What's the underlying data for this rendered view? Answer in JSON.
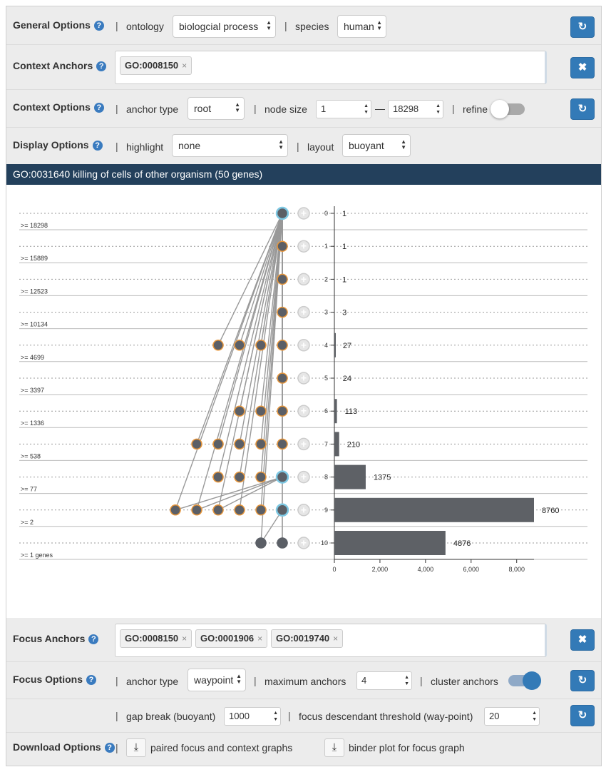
{
  "general": {
    "title": "General Options",
    "ontology_label": "ontology",
    "ontology_value": "biologcial process",
    "species_label": "species",
    "species_value": "human"
  },
  "context_anchors": {
    "title": "Context Anchors",
    "tags": [
      "GO:0008150"
    ]
  },
  "context_options": {
    "title": "Context Options",
    "anchor_type_label": "anchor type",
    "anchor_type_value": "root",
    "node_size_label": "node size",
    "node_size_min": "1",
    "node_size_dash": "—",
    "node_size_max": "18298",
    "refine_label": "refine",
    "refine_on": false
  },
  "display_options": {
    "title": "Display Options",
    "highlight_label": "highlight",
    "highlight_value": "none",
    "layout_label": "layout",
    "layout_value": "buoyant"
  },
  "banner": {
    "text": "GO:0031640 killing of cells of other organism (50 genes)"
  },
  "graph": {
    "row_thresholds": [
      ">= 18298",
      ">= 15889",
      ">= 12523",
      ">= 10134",
      ">= 4699",
      ">= 3397",
      ">= 1336",
      ">= 538",
      ">= 77",
      ">= 2",
      ">= 1 genes"
    ],
    "level_labels": [
      "0",
      "1",
      "2",
      "3",
      "4",
      "5",
      "6",
      "7",
      "8",
      "9",
      "10"
    ],
    "nodes_per_level": [
      1,
      1,
      1,
      1,
      4,
      1,
      3,
      5,
      4,
      6,
      2
    ],
    "highlighted_nodes": [
      "level-0",
      "level-8",
      "level-9"
    ],
    "colors": {
      "node_fill": "#5b5f66",
      "node_stroke": "#e8963a",
      "highlight_stroke": "#7ec8e3",
      "edge": "#999999",
      "bar": "#5e6166"
    }
  },
  "chart_data": {
    "type": "bar",
    "orientation": "horizontal",
    "categories": [
      "0",
      "1",
      "2",
      "3",
      "4",
      "5",
      "6",
      "7",
      "8",
      "9",
      "10"
    ],
    "values": [
      1,
      1,
      1,
      3,
      27,
      24,
      113,
      210,
      1375,
      8760,
      4876
    ],
    "value_labels": [
      "1",
      "1",
      "1",
      "3",
      "27",
      "24",
      "113",
      "210",
      "1375",
      "8760",
      "4876"
    ],
    "xlim": [
      0,
      8760
    ],
    "xticks": [
      0,
      2000,
      4000,
      6000,
      8000
    ],
    "xtick_labels": [
      "0",
      "2,000",
      "4,000",
      "6,000",
      "8,000"
    ]
  },
  "focus_anchors": {
    "title": "Focus Anchors",
    "tags": [
      "GO:0008150",
      "GO:0001906",
      "GO:0019740"
    ]
  },
  "focus_options": {
    "title": "Focus Options",
    "anchor_type_label": "anchor type",
    "anchor_type_value": "waypoint",
    "max_anchors_label": "maximum anchors",
    "max_anchors_value": "4",
    "cluster_label": "cluster anchors",
    "cluster_on": true,
    "gap_break_label": "gap break (buoyant)",
    "gap_break_value": "1000",
    "threshold_label": "focus descendant threshold (way-point)",
    "threshold_value": "20"
  },
  "download": {
    "title": "Download Options",
    "paired_label": "paired focus and context graphs",
    "binder_label": "binder plot for focus graph"
  },
  "icons": {
    "help": "?",
    "refresh": "↻",
    "close": "✖",
    "tag_remove": "×",
    "download": "⤓",
    "expand": "+"
  }
}
